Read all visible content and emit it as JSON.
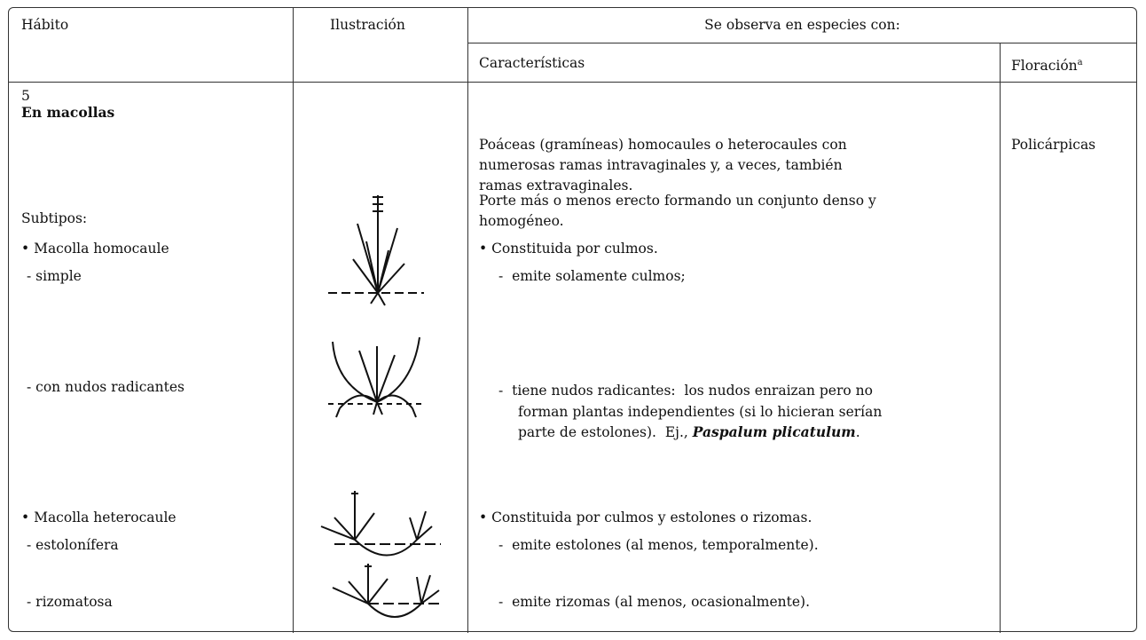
{
  "header": {
    "habit": "Hábito",
    "illustration": "Ilustración",
    "observed": "Se observa en especies con:",
    "characteristics": "Características",
    "flowering": "Floración",
    "flowering_note": "a"
  },
  "habit": {
    "number": "5",
    "name": "En macollas",
    "subtypes_label": "Subtipos:",
    "items": [
      "• Macolla homocaule",
      "- simple",
      "- con nudos radicantes",
      "• Macolla heterocaule",
      "- estolonífera",
      "- rizomatosa"
    ]
  },
  "characteristics": {
    "intro": [
      "Poáceas (gramíneas) homocaules o heterocaules con",
      "numerosas ramas intravaginales y, a veces, también",
      "ramas extravaginales."
    ],
    "bearing": [
      "Porte más o menos erecto formando un conjunto denso y",
      "homogéneo."
    ],
    "homocaule": "• Constituida por culmos.",
    "simple": "-  emite solamente culmos;",
    "radicant": [
      "-  tiene nudos radicantes:  los nudos enraizan pero no",
      "forman plantas independientes (si lo hicieran serían",
      "parte de estolones).  Ej., "
    ],
    "example": "Paspalum plicatulum",
    "example_end": ".",
    "heterocaule": "• Constituida por culmos y estolones o rizomas.",
    "stoloniferous": "-  emite estolones (al menos, temporalmente).",
    "rhizomatous": "-  emite rizomas (al menos, ocasionalmente)."
  },
  "flowering": "Policárpicas"
}
